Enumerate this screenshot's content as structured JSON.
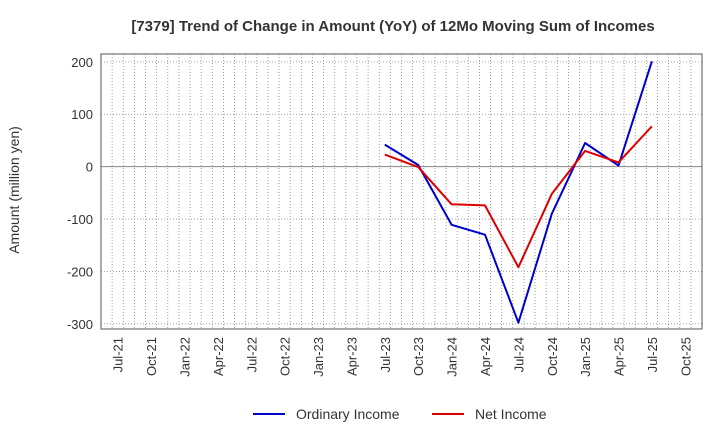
{
  "chart_data": {
    "type": "line",
    "title": "[7379]  Trend of Change in Amount (YoY) of 12Mo Moving Sum of Incomes",
    "ylabel": "Amount (million yen)",
    "xlabel": "",
    "categories": [
      "Jul-21",
      "Oct-21",
      "Jan-22",
      "Apr-22",
      "Jul-22",
      "Oct-22",
      "Jan-23",
      "Apr-23",
      "Jul-23",
      "Oct-23",
      "Jan-24",
      "Apr-24",
      "Jul-24",
      "Oct-24",
      "Jan-25",
      "Apr-25",
      "Jul-25",
      "Oct-25"
    ],
    "yticks": [
      200,
      100,
      0,
      -100,
      -200,
      -300
    ],
    "ylim": [
      -310,
      215
    ],
    "grid": true,
    "legend_position": "bottom",
    "series": [
      {
        "name": "Ordinary Income",
        "color": "#0000cc",
        "values": [
          null,
          null,
          null,
          null,
          null,
          null,
          null,
          null,
          42,
          3,
          -111,
          -130,
          -298,
          -90,
          45,
          2,
          201,
          null
        ]
      },
      {
        "name": "Net Income",
        "color": "#dd0000",
        "values": [
          null,
          null,
          null,
          null,
          null,
          null,
          null,
          null,
          23,
          -1,
          -72,
          -74,
          -192,
          -52,
          30,
          8,
          77,
          null
        ]
      }
    ]
  }
}
